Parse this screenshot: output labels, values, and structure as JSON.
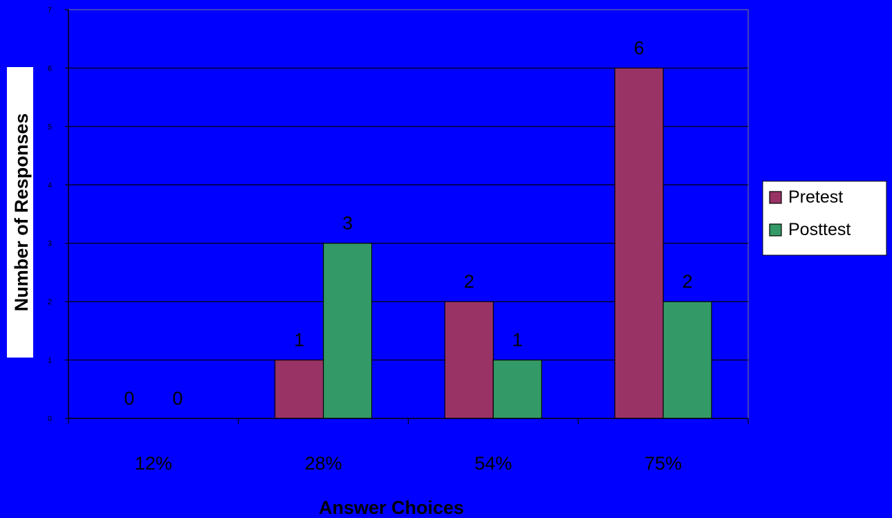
{
  "chart_data": {
    "type": "bar",
    "categories": [
      "12%",
      "28%",
      "54%",
      "75%"
    ],
    "series": [
      {
        "name": "Pretest",
        "values": [
          0,
          1,
          2,
          6
        ],
        "color": "#993366"
      },
      {
        "name": "Posttest",
        "values": [
          0,
          3,
          1,
          2
        ],
        "color": "#339966"
      }
    ],
    "xlabel": "Answer Choices",
    "ylabel": "Number of Responses",
    "ylim": [
      0,
      7
    ],
    "yticks": [
      "0",
      "1",
      "2",
      "3",
      "4",
      "5",
      "6",
      "7"
    ],
    "grid": true,
    "legend_position": "right"
  },
  "colors": {
    "background": "#0000FF",
    "gridline": "#000000"
  }
}
